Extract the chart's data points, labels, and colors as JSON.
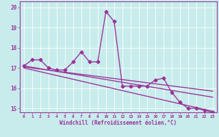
{
  "xlabel": "Windchill (Refroidissement éolien,°C)",
  "ylabel": "",
  "xlim": [
    -0.5,
    23.5
  ],
  "ylim": [
    14.8,
    20.3
  ],
  "yticks": [
    15,
    16,
    17,
    18,
    19,
    20
  ],
  "xticks": [
    0,
    1,
    2,
    3,
    4,
    5,
    6,
    7,
    8,
    9,
    10,
    11,
    12,
    13,
    14,
    15,
    16,
    17,
    18,
    19,
    20,
    21,
    22,
    23
  ],
  "bg_color": "#c8ecec",
  "grid_color": "#aed4d4",
  "line_color": "#993399",
  "line_width": 1.0,
  "marker": "D",
  "marker_size": 2.5,
  "series1_x": [
    0,
    1,
    2,
    3,
    4,
    5,
    6,
    7,
    8,
    9,
    10,
    11,
    12,
    13,
    14,
    15,
    16,
    17,
    18,
    19,
    20,
    21,
    22,
    23
  ],
  "series1_y": [
    17.1,
    17.4,
    17.4,
    17.0,
    16.9,
    16.9,
    17.3,
    17.8,
    17.3,
    17.3,
    19.8,
    19.3,
    16.1,
    16.1,
    16.1,
    16.1,
    16.4,
    16.5,
    15.8,
    15.3,
    15.0,
    15.0,
    14.9,
    14.8
  ],
  "trend1_x": [
    0,
    23
  ],
  "trend1_y": [
    17.1,
    15.55
  ],
  "trend2_x": [
    0,
    23
  ],
  "trend2_y": [
    17.05,
    15.85
  ],
  "trend3_x": [
    0,
    23
  ],
  "trend3_y": [
    17.0,
    14.85
  ]
}
